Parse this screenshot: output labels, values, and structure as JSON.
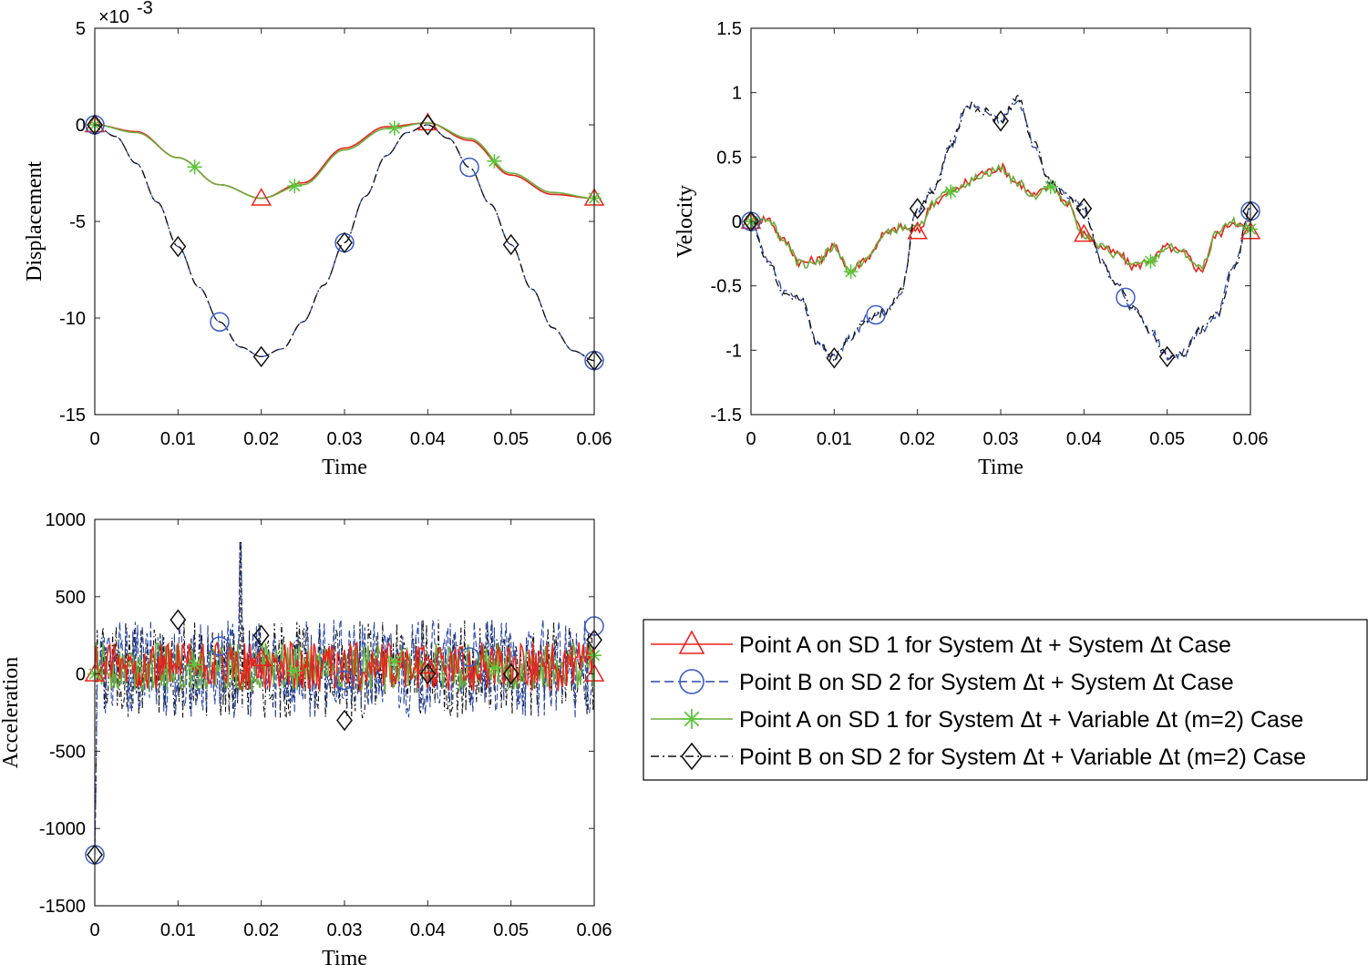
{
  "chart_data": [
    {
      "id": "disp",
      "type": "line",
      "xlabel": "Time",
      "ylabel": "Displacement",
      "y_exponent": "×10",
      "y_exponent_power": "-3",
      "xlim": [
        0,
        0.06
      ],
      "ylim": [
        -15,
        5
      ],
      "xticks": [
        0,
        0.01,
        0.02,
        0.03,
        0.04,
        0.05,
        0.06
      ],
      "xtick_labels": [
        "0",
        "0.01",
        "0.02",
        "0.03",
        "0.04",
        "0.05",
        "0.06"
      ],
      "yticks": [
        -15,
        -10,
        -5,
        0,
        5
      ],
      "ytick_labels": [
        "-15",
        "-10",
        "-5",
        "0",
        "5"
      ],
      "series": [
        {
          "name": "A_sys",
          "x": [
            0,
            0.005,
            0.01,
            0.015,
            0.02,
            0.025,
            0.03,
            0.035,
            0.04,
            0.045,
            0.05,
            0.055,
            0.06
          ],
          "y": [
            0,
            -0.35,
            -1.7,
            -3.1,
            -3.8,
            -3.0,
            -1.2,
            -0.1,
            0.1,
            -0.8,
            -2.6,
            -3.6,
            -3.8
          ],
          "markers_x": [
            0,
            0.02,
            0.04,
            0.06
          ]
        },
        {
          "name": "B_sys",
          "x": [
            0,
            0.0025,
            0.005,
            0.0075,
            0.01,
            0.0125,
            0.015,
            0.0175,
            0.02,
            0.0225,
            0.025,
            0.0275,
            0.03,
            0.0325,
            0.035,
            0.0375,
            0.04,
            0.0425,
            0.045,
            0.0475,
            0.05,
            0.0525,
            0.055,
            0.0575,
            0.06
          ],
          "y": [
            0,
            -0.6,
            -2.0,
            -4.0,
            -6.3,
            -8.4,
            -10.2,
            -11.5,
            -12.0,
            -11.6,
            -10.2,
            -8.3,
            -6.1,
            -3.7,
            -1.6,
            -0.4,
            0,
            -0.7,
            -2.2,
            -4.1,
            -6.2,
            -8.5,
            -10.5,
            -11.7,
            -12.2
          ],
          "markers_x": [
            0,
            0.015,
            0.03,
            0.045,
            0.06
          ]
        },
        {
          "name": "A_var",
          "x": [
            0,
            0.005,
            0.01,
            0.015,
            0.02,
            0.025,
            0.03,
            0.035,
            0.04,
            0.045,
            0.05,
            0.055,
            0.06
          ],
          "y": [
            0,
            -0.4,
            -1.7,
            -3.1,
            -3.8,
            -3.1,
            -1.3,
            -0.2,
            0.1,
            -0.7,
            -2.5,
            -3.5,
            -3.8
          ],
          "markers_x": [
            0,
            0.012,
            0.024,
            0.036,
            0.048,
            0.06
          ]
        },
        {
          "name": "B_var",
          "x": [
            0,
            0.0025,
            0.005,
            0.0075,
            0.01,
            0.0125,
            0.015,
            0.0175,
            0.02,
            0.0225,
            0.025,
            0.0275,
            0.03,
            0.0325,
            0.035,
            0.0375,
            0.04,
            0.0425,
            0.045,
            0.0475,
            0.05,
            0.0525,
            0.055,
            0.0575,
            0.06
          ],
          "y": [
            0,
            -0.6,
            -2.0,
            -4.0,
            -6.3,
            -8.4,
            -10.2,
            -11.5,
            -12.0,
            -11.6,
            -10.2,
            -8.3,
            -6.1,
            -3.7,
            -1.6,
            -0.4,
            0,
            -0.7,
            -2.2,
            -4.1,
            -6.2,
            -8.5,
            -10.5,
            -11.7,
            -12.2
          ],
          "markers_x": [
            0,
            0.01,
            0.02,
            0.03,
            0.04,
            0.05,
            0.06
          ]
        }
      ]
    },
    {
      "id": "vel",
      "type": "line",
      "xlabel": "Time",
      "ylabel": "Velocity",
      "xlim": [
        0,
        0.06
      ],
      "ylim": [
        -1.5,
        1.5
      ],
      "xticks": [
        0,
        0.01,
        0.02,
        0.03,
        0.04,
        0.05,
        0.06
      ],
      "xtick_labels": [
        "0",
        "0.01",
        "0.02",
        "0.03",
        "0.04",
        "0.05",
        "0.06"
      ],
      "yticks": [
        -1.5,
        -1,
        -0.5,
        0,
        0.5,
        1,
        1.5
      ],
      "ytick_labels": [
        "-1.5",
        "-1",
        "-0.5",
        "0",
        "0.5",
        "1",
        "1.5"
      ],
      "series": [
        {
          "name": "A_sys",
          "x": [
            0,
            0.002,
            0.004,
            0.006,
            0.008,
            0.01,
            0.012,
            0.014,
            0.016,
            0.018,
            0.02,
            0.022,
            0.024,
            0.026,
            0.028,
            0.03,
            0.032,
            0.034,
            0.036,
            0.038,
            0.04,
            0.042,
            0.044,
            0.046,
            0.048,
            0.05,
            0.052,
            0.054,
            0.056,
            0.058,
            0.06
          ],
          "y": [
            0,
            0.02,
            -0.15,
            -0.32,
            -0.3,
            -0.2,
            -0.38,
            -0.28,
            -0.1,
            -0.05,
            -0.08,
            0.15,
            0.22,
            0.3,
            0.38,
            0.42,
            0.3,
            0.2,
            0.27,
            0.15,
            -0.1,
            -0.2,
            -0.25,
            -0.35,
            -0.3,
            -0.2,
            -0.25,
            -0.38,
            -0.1,
            0.0,
            -0.08
          ],
          "markers_x": [
            0,
            0.02,
            0.04,
            0.06
          ]
        },
        {
          "name": "B_sys",
          "x": [
            0,
            0.002,
            0.004,
            0.006,
            0.008,
            0.01,
            0.012,
            0.014,
            0.016,
            0.018,
            0.02,
            0.022,
            0.024,
            0.026,
            0.028,
            0.03,
            0.032,
            0.034,
            0.036,
            0.038,
            0.04,
            0.042,
            0.044,
            0.046,
            0.048,
            0.05,
            0.052,
            0.054,
            0.056,
            0.058,
            0.06
          ],
          "y": [
            0,
            -0.3,
            -0.55,
            -0.6,
            -0.95,
            -1.05,
            -0.9,
            -0.75,
            -0.7,
            -0.55,
            0.1,
            0.25,
            0.6,
            0.9,
            0.85,
            0.78,
            0.95,
            0.6,
            0.3,
            0.2,
            0.1,
            -0.3,
            -0.5,
            -0.68,
            -0.85,
            -1.05,
            -1.02,
            -0.85,
            -0.72,
            -0.35,
            0.08
          ],
          "markers_x": [
            0,
            0.015,
            0.045,
            0.06
          ]
        },
        {
          "name": "A_var",
          "x": [
            0,
            0.002,
            0.004,
            0.006,
            0.008,
            0.01,
            0.012,
            0.014,
            0.016,
            0.018,
            0.02,
            0.022,
            0.024,
            0.026,
            0.028,
            0.03,
            0.032,
            0.034,
            0.036,
            0.038,
            0.04,
            0.042,
            0.044,
            0.046,
            0.048,
            0.05,
            0.052,
            0.054,
            0.056,
            0.058,
            0.06
          ],
          "y": [
            0,
            0.03,
            -0.15,
            -0.33,
            -0.31,
            -0.2,
            -0.39,
            -0.29,
            -0.1,
            -0.05,
            -0.06,
            0.15,
            0.23,
            0.3,
            0.37,
            0.41,
            0.3,
            0.2,
            0.27,
            0.15,
            -0.1,
            -0.2,
            -0.26,
            -0.35,
            -0.31,
            -0.2,
            -0.25,
            -0.37,
            -0.1,
            0.0,
            -0.06
          ],
          "markers_x": [
            0,
            0.012,
            0.024,
            0.036,
            0.048,
            0.06
          ]
        },
        {
          "name": "B_var",
          "x": [
            0,
            0.002,
            0.004,
            0.006,
            0.008,
            0.01,
            0.012,
            0.014,
            0.016,
            0.018,
            0.02,
            0.022,
            0.024,
            0.026,
            0.028,
            0.03,
            0.032,
            0.034,
            0.036,
            0.038,
            0.04,
            0.042,
            0.044,
            0.046,
            0.048,
            0.05,
            0.052,
            0.054,
            0.056,
            0.058,
            0.06
          ],
          "y": [
            0,
            -0.3,
            -0.56,
            -0.6,
            -0.96,
            -1.06,
            -0.9,
            -0.75,
            -0.7,
            -0.55,
            0.1,
            0.25,
            0.6,
            0.9,
            0.85,
            0.78,
            0.96,
            0.6,
            0.3,
            0.2,
            0.1,
            -0.3,
            -0.5,
            -0.68,
            -0.86,
            -1.05,
            -1.02,
            -0.85,
            -0.72,
            -0.35,
            0.08
          ],
          "markers_x": [
            0,
            0.01,
            0.02,
            0.03,
            0.04,
            0.05,
            0.06
          ]
        }
      ]
    },
    {
      "id": "acc",
      "type": "line",
      "xlabel": "Time",
      "ylabel": "Acceleration",
      "xlim": [
        0,
        0.06
      ],
      "ylim": [
        -1500,
        1000
      ],
      "xticks": [
        0,
        0.01,
        0.02,
        0.03,
        0.04,
        0.05,
        0.06
      ],
      "xtick_labels": [
        "0",
        "0.01",
        "0.02",
        "0.03",
        "0.04",
        "0.05",
        "0.06"
      ],
      "yticks": [
        -1500,
        -1000,
        -500,
        0,
        500,
        1000
      ],
      "ytick_labels": [
        "-1500",
        "-1000",
        "-500",
        "0",
        "500",
        "1000"
      ],
      "noise": {
        "A_amplitude": 160,
        "B_amplitude": 320,
        "B_peak_x": 0.0175,
        "B_peak_y": 850,
        "B_min_x": 0.0,
        "B_min_y": -1170
      },
      "series": [
        {
          "name": "A_sys",
          "markers_x": [
            0,
            0.02,
            0.04,
            0.06
          ],
          "markers_y": [
            0,
            100,
            50,
            0
          ]
        },
        {
          "name": "B_sys",
          "markers_x": [
            0,
            0.015,
            0.03,
            0.045,
            0.06
          ],
          "markers_y": [
            -1170,
            180,
            -40,
            110,
            310
          ]
        },
        {
          "name": "A_var",
          "markers_x": [
            0,
            0.012,
            0.024,
            0.036,
            0.048,
            0.06
          ],
          "markers_y": [
            0,
            60,
            20,
            80,
            40,
            120
          ]
        },
        {
          "name": "B_var",
          "markers_x": [
            0,
            0.01,
            0.02,
            0.03,
            0.04,
            0.05,
            0.06
          ],
          "markers_y": [
            -1170,
            350,
            250,
            -300,
            0,
            0,
            220
          ]
        }
      ]
    }
  ],
  "legend": {
    "items": [
      {
        "key": "A_sys",
        "label": "Point A on SD 1 for System Δt + System Δt Case"
      },
      {
        "key": "B_sys",
        "label": "Point B on SD 2 for System Δt + System Δt Case"
      },
      {
        "key": "A_var",
        "label": "Point A on SD 1 for System Δt + Variable Δt (m=2) Case"
      },
      {
        "key": "B_var",
        "label": "Point B on SD 2 for System Δt + Variable Δt (m=2) Case"
      }
    ]
  },
  "colors": {
    "A_sys": "#e8231a",
    "B_sys": "#2a47a8",
    "A_var": "#6aad3c",
    "B_var": "#111111",
    "A_var_marker": "#5bc63a",
    "B_sys_marker": "#3a5bc8"
  }
}
